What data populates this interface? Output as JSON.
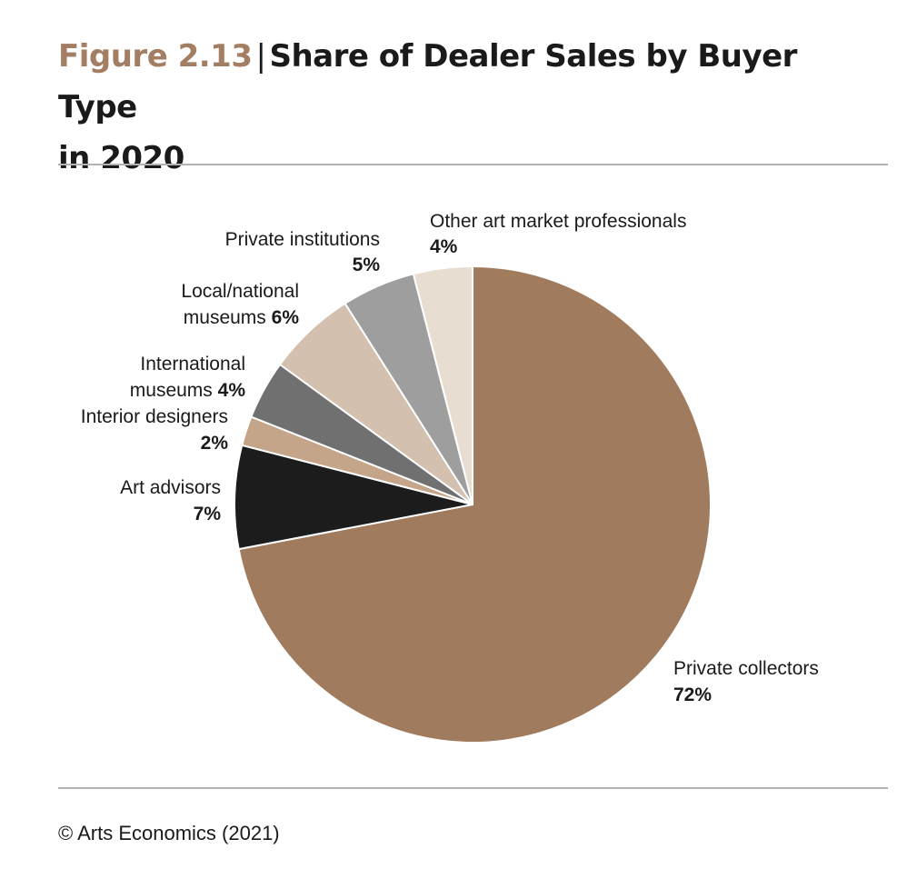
{
  "figure": {
    "number": "Figure 2.13",
    "separator": "|",
    "title_line1": "Share of Dealer Sales by Buyer Type",
    "title_line2": "in 2020"
  },
  "source": "© Arts Economics (2021)",
  "colors": {
    "accent": "#a37e62",
    "rule": "#b3b3b3"
  },
  "chart_data": {
    "type": "pie",
    "title": "Share of Dealer Sales by Buyer Type in 2020",
    "start": "12 o'clock, clockwise",
    "slices": [
      {
        "label": "Private collectors",
        "value": 72,
        "display": "72%",
        "color": "#a07b5e"
      },
      {
        "label": "Art advisors",
        "value": 7,
        "display": "7%",
        "color": "#1c1c1c"
      },
      {
        "label": "Interior designers",
        "value": 2,
        "display": "2%",
        "color": "#c4a58a"
      },
      {
        "label": "International museums",
        "value": 4,
        "display": "4%",
        "color": "#707070"
      },
      {
        "label": "Local/national museums",
        "value": 6,
        "display": "6%",
        "color": "#d3c0ae"
      },
      {
        "label": "Private institutions",
        "value": 5,
        "display": "5%",
        "color": "#9e9e9e"
      },
      {
        "label": "Other art market professionals",
        "value": 4,
        "display": "4%",
        "color": "#e8ddd1"
      }
    ]
  }
}
